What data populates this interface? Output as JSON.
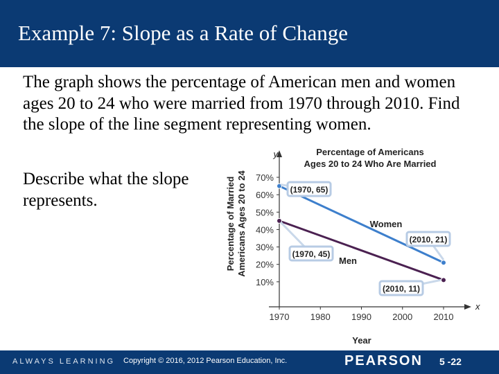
{
  "slide": {
    "title": "Example 7: Slope as a Rate of Change",
    "paragraph1": "The graph shows the percentage of American men and women ages 20 to 24 who were married from 1970 through 2010. Find the slope of the line segment representing women.",
    "paragraph2": " Describe what the slope represents."
  },
  "footer": {
    "left": "ALWAYS LEARNING",
    "copyright": "Copyright © 2016, 2012  Pearson Education, Inc.",
    "brand": "PEARSON",
    "page": "5 -22"
  },
  "colors": {
    "title_bar": "#0b3a73",
    "women_line": "#3d7fcc",
    "men_line": "#4b2151",
    "callout": "#c9d8ea"
  },
  "chart_data": {
    "type": "line",
    "title": "Percentage of Americans Ages 20 to 24 Who Are Married",
    "title_lines": [
      "Percentage of Americans",
      "Ages 20 to 24 Who Are Married"
    ],
    "xlabel": "Year",
    "ylabel": "Percentage of Married Americans Ages 20 to 24",
    "ylabel_lines": [
      "Percentage of Married",
      "Americans Ages 20 to 24"
    ],
    "x_axis_letter": "x",
    "y_axis_letter": "y",
    "xlim": [
      1970,
      2010
    ],
    "ylim": [
      0,
      70
    ],
    "x_ticks": [
      "1970",
      "1980",
      "1990",
      "2000",
      "2010"
    ],
    "y_ticks": [
      "10%",
      "20%",
      "30%",
      "40%",
      "50%",
      "60%",
      "70%"
    ],
    "grid": false,
    "series": [
      {
        "name": "Women",
        "x": [
          1970,
          2010
        ],
        "y": [
          65,
          21
        ]
      },
      {
        "name": "Men",
        "x": [
          1970,
          2010
        ],
        "y": [
          45,
          11
        ]
      }
    ],
    "annotations": [
      "(1970, 65)",
      "(2010, 21)",
      "(1970, 45)",
      "(2010, 11)"
    ]
  }
}
